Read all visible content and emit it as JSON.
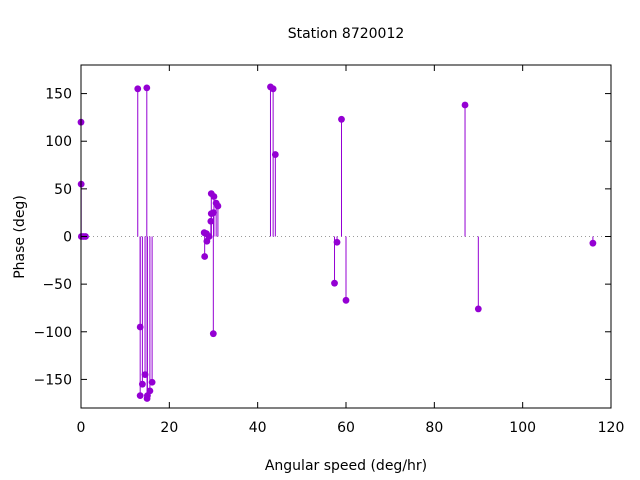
{
  "chart_data": {
    "type": "scatter",
    "style": "impulses-with-points",
    "title": "Station 8720012",
    "xlabel": "Angular speed (deg/hr)",
    "ylabel": "Phase (deg)",
    "xlim": [
      0,
      120
    ],
    "ylim": [
      -180,
      180
    ],
    "xticks": [
      0,
      20,
      40,
      60,
      80,
      100,
      120
    ],
    "yticks": [
      -150,
      -100,
      -50,
      0,
      50,
      100,
      150
    ],
    "zero_line": "dotted",
    "grid": false,
    "color": "#9400d3",
    "series": [
      {
        "x": [
          0.0,
          0.04,
          0.08,
          0.54,
          1.02,
          12.85,
          13.4,
          13.4,
          13.9,
          14.5,
          14.9,
          14.96,
          15.04,
          15.6,
          16.1,
          27.9,
          28.0,
          28.4,
          28.5,
          29.0,
          29.4,
          29.5,
          29.5,
          29.96,
          30.0,
          30.1,
          30.6,
          31.0,
          42.9,
          43.5,
          44.0,
          57.4,
          57.97,
          58.98,
          60.0,
          86.95,
          89.96,
          115.9
        ],
        "y": [
          120,
          55,
          0,
          0,
          0,
          155,
          -167,
          -95,
          -155,
          -145,
          156,
          -170,
          -167,
          -162,
          -153,
          4,
          -21,
          3,
          -5,
          0,
          16,
          45,
          24,
          -102,
          25,
          42,
          35,
          32,
          157,
          155,
          86,
          -49,
          -6,
          123,
          -67,
          138,
          -76,
          -7
        ]
      }
    ]
  }
}
